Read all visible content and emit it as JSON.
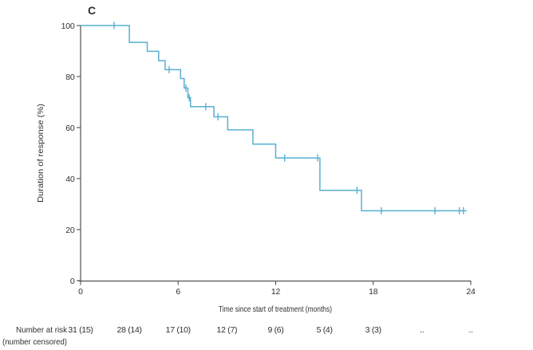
{
  "chart_data": {
    "type": "line",
    "subtype": "kaplan-meier-step-curve",
    "panel_label": "C",
    "xlabel": "Time since start of treatment (months)",
    "ylabel": "Duration of response (%)",
    "xlim": [
      0,
      24
    ],
    "ylim": [
      0,
      100
    ],
    "x_ticks": [
      0,
      6,
      12,
      18,
      24
    ],
    "y_ticks": [
      0,
      20,
      40,
      60,
      80,
      100
    ],
    "grid": false,
    "legend": false,
    "line_color": "#57b0d2",
    "axis_color": "#55504b",
    "text_color": "#332e2a",
    "series": [
      {
        "name": "Duration of response",
        "steps": [
          {
            "t": 0,
            "p": 100
          },
          {
            "t": 3.0,
            "p": 93.4
          },
          {
            "t": 4.1,
            "p": 89.9
          },
          {
            "t": 4.8,
            "p": 86.2
          },
          {
            "t": 5.2,
            "p": 82.7
          },
          {
            "t": 6.15,
            "p": 79.2
          },
          {
            "t": 6.37,
            "p": 75.5
          },
          {
            "t": 6.6,
            "p": 71.7
          },
          {
            "t": 6.76,
            "p": 68.2
          },
          {
            "t": 8.2,
            "p": 64.2
          },
          {
            "t": 9.05,
            "p": 59.1
          },
          {
            "t": 10.6,
            "p": 53.5
          },
          {
            "t": 12.0,
            "p": 48.1
          },
          {
            "t": 14.72,
            "p": 35.4
          },
          {
            "t": 17.28,
            "p": 27.4
          }
        ],
        "end_t": 23.75,
        "censor_marks": [
          {
            "t": 2.06,
            "p": 100
          },
          {
            "t": 5.45,
            "p": 82.7
          },
          {
            "t": 6.48,
            "p": 75.5
          },
          {
            "t": 6.68,
            "p": 71.7
          },
          {
            "t": 7.7,
            "p": 68.2
          },
          {
            "t": 8.45,
            "p": 64.2
          },
          {
            "t": 12.55,
            "p": 48.1
          },
          {
            "t": 14.58,
            "p": 48.1
          },
          {
            "t": 17.0,
            "p": 35.4
          },
          {
            "t": 18.5,
            "p": 27.4
          },
          {
            "t": 21.8,
            "p": 27.4
          },
          {
            "t": 23.3,
            "p": 27.4
          },
          {
            "t": 23.55,
            "p": 27.4
          }
        ]
      }
    ],
    "number_at_risk": {
      "label_line1": "Number at risk",
      "label_line2": "(number censored)",
      "timepoints": [
        0,
        3,
        6,
        9,
        12,
        15,
        18,
        21,
        24
      ],
      "values": [
        "31 (15)",
        "28 (14)",
        "17 (10)",
        "12 (7)",
        "9 (6)",
        "5 (4)",
        "3 (3)",
        "..",
        ".."
      ]
    }
  }
}
